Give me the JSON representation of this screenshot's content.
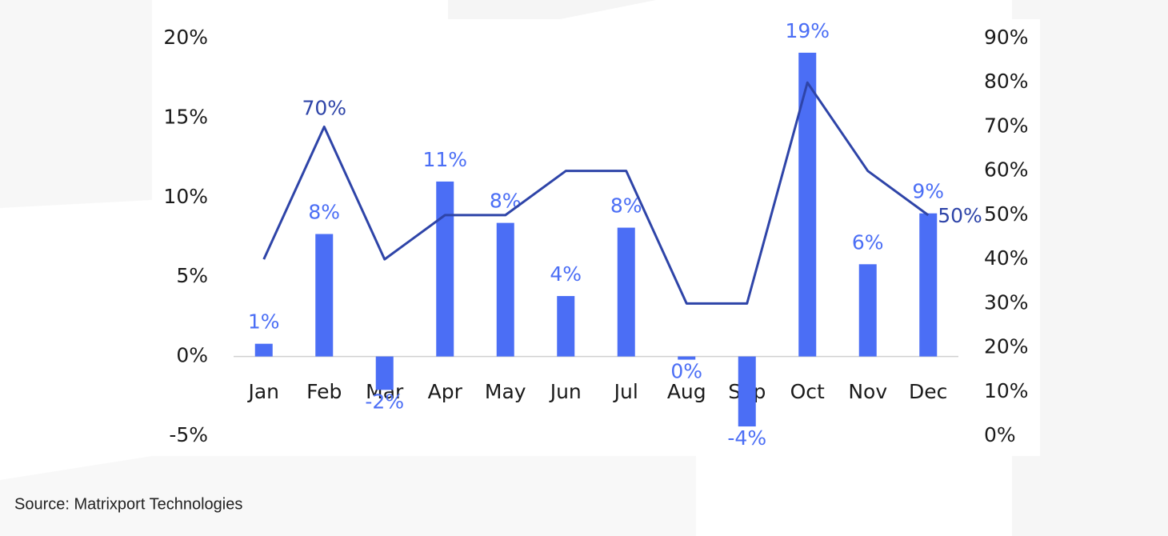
{
  "chart_data": {
    "type": "bar_line",
    "source": "Source: Matrixport Technologies",
    "categories": [
      "Jan",
      "Feb",
      "Mar",
      "Apr",
      "May",
      "Jun",
      "Jul",
      "Aug",
      "Sep",
      "Oct",
      "Nov",
      "Dec"
    ],
    "series": [
      {
        "type": "bar",
        "color": "#4b6ef5",
        "values": [
          0.8,
          7.7,
          -2.1,
          11.0,
          8.4,
          3.8,
          8.1,
          -0.2,
          -4.4,
          19.1,
          5.8,
          9.0
        ],
        "value_labels": [
          "1%",
          "8%",
          "-2%",
          "11%",
          "8%",
          "4%",
          "8%",
          "0%",
          "-4%",
          "19%",
          "6%",
          "9%"
        ]
      },
      {
        "type": "line",
        "axis": "y2",
        "color": "#2e44a8",
        "values": [
          40,
          70,
          40,
          50,
          50,
          60,
          60,
          30,
          30,
          80,
          60,
          50
        ],
        "value_labels": [
          null,
          "70%",
          null,
          null,
          null,
          null,
          null,
          null,
          null,
          null,
          null,
          "50%"
        ]
      }
    ],
    "ylim": [
      -5,
      20
    ],
    "yticks": [
      {
        "value": -5,
        "label": "-5%"
      },
      {
        "value": 0,
        "label": "0%"
      },
      {
        "value": 5,
        "label": "5%"
      },
      {
        "value": 10,
        "label": "10%"
      },
      {
        "value": 15,
        "label": "15%"
      },
      {
        "value": 20,
        "label": "20%"
      }
    ],
    "y2lim": [
      0,
      90
    ],
    "y2ticks": [
      {
        "value": 0,
        "label": "0%"
      },
      {
        "value": 10,
        "label": "10%"
      },
      {
        "value": 20,
        "label": "20%"
      },
      {
        "value": 30,
        "label": "30%"
      },
      {
        "value": 40,
        "label": "40%"
      },
      {
        "value": 50,
        "label": "50%"
      },
      {
        "value": 60,
        "label": "60%"
      },
      {
        "value": 70,
        "label": "70%"
      },
      {
        "value": 80,
        "label": "80%"
      },
      {
        "value": 90,
        "label": "90%"
      }
    ],
    "grid": false
  }
}
